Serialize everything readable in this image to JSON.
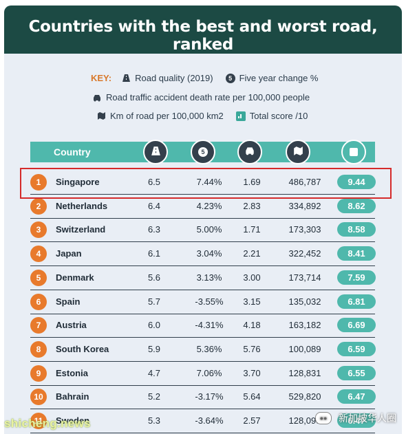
{
  "title": "Countries with the best and worst road, ranked",
  "key": {
    "label": "KEY:",
    "items": [
      {
        "icon": "road-icon",
        "text": "Road quality (2019)"
      },
      {
        "icon": "number-5-icon",
        "text": "Five year change %",
        "glyph": "5"
      },
      {
        "icon": "car-crash-icon",
        "text": "Road traffic accident death rate per 100,000 people"
      },
      {
        "icon": "map-icon",
        "text": "Km of road per 100,000 km2"
      },
      {
        "icon": "chart-icon",
        "text": "Total score /10"
      }
    ]
  },
  "table": {
    "country_header": "Country",
    "rows": [
      {
        "rank": "1",
        "country": "Singapore",
        "quality": "6.5",
        "change": "7.44%",
        "death_rate": "1.69",
        "km_road": "486,787",
        "score": "9.44"
      },
      {
        "rank": "2",
        "country": "Netherlands",
        "quality": "6.4",
        "change": "4.23%",
        "death_rate": "2.83",
        "km_road": "334,892",
        "score": "8.62"
      },
      {
        "rank": "3",
        "country": "Switzerland",
        "quality": "6.3",
        "change": "5.00%",
        "death_rate": "1.71",
        "km_road": "173,303",
        "score": "8.58"
      },
      {
        "rank": "4",
        "country": "Japan",
        "quality": "6.1",
        "change": "3.04%",
        "death_rate": "2.21",
        "km_road": "322,452",
        "score": "8.41"
      },
      {
        "rank": "5",
        "country": "Denmark",
        "quality": "5.6",
        "change": "3.13%",
        "death_rate": "3.00",
        "km_road": "173,714",
        "score": "7.59"
      },
      {
        "rank": "6",
        "country": "Spain",
        "quality": "5.7",
        "change": "-3.55%",
        "death_rate": "3.15",
        "km_road": "135,032",
        "score": "6.81"
      },
      {
        "rank": "7",
        "country": "Austria",
        "quality": "6.0",
        "change": "-4.31%",
        "death_rate": "4.18",
        "km_road": "163,182",
        "score": "6.69"
      },
      {
        "rank": "8",
        "country": "South Korea",
        "quality": "5.9",
        "change": "5.36%",
        "death_rate": "5.76",
        "km_road": "100,089",
        "score": "6.59"
      },
      {
        "rank": "9",
        "country": "Estonia",
        "quality": "4.7",
        "change": "7.06%",
        "death_rate": "3.70",
        "km_road": "128,831",
        "score": "6.55"
      },
      {
        "rank": "10",
        "country": "Bahrain",
        "quality": "5.2",
        "change": "-3.17%",
        "death_rate": "5.64",
        "km_road": "529,820",
        "score": "6.47"
      },
      {
        "rank": "11",
        "country": "Sweden",
        "quality": "5.3",
        "change": "-3.64%",
        "death_rate": "2.57",
        "km_road": "128,095",
        "score": "6.47"
      }
    ]
  },
  "watermark_left": "shicheng.news",
  "watermark_right": "新加坡华人圈",
  "colors": {
    "header": "#1c4a44",
    "accent": "#4fb8ac",
    "rank": "#e87a2c",
    "highlight": "#d52a2a",
    "background": "#e9eef5"
  }
}
